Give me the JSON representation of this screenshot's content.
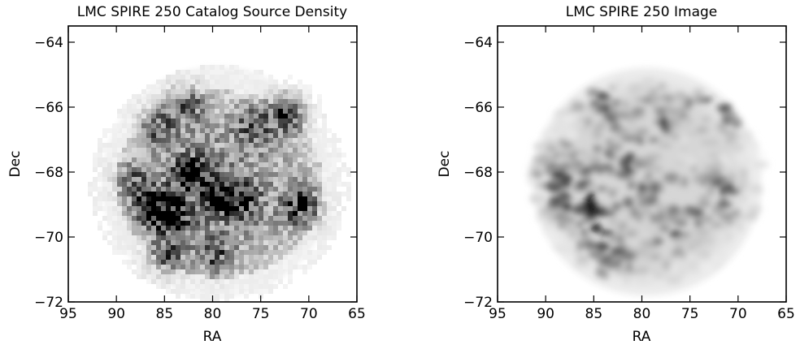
{
  "chart_data": [
    {
      "type": "heatmap",
      "title": "LMC SPIRE 250 Catalog Source Density",
      "xlabel": "RA",
      "ylabel": "Dec",
      "xlim": [
        95,
        65
      ],
      "ylim": [
        -72,
        -63.5
      ],
      "xticks": [
        95,
        90,
        85,
        80,
        75,
        70,
        65
      ],
      "xticklabels": [
        "95",
        "90",
        "85",
        "80",
        "75",
        "70",
        "65"
      ],
      "yticks": [
        -64,
        -66,
        -68,
        -70,
        -72
      ],
      "yticklabels": [
        "−64",
        "−66",
        "−68",
        "−70",
        "−72"
      ],
      "colormap": "gray_r",
      "texture": "binned",
      "features": [
        {
          "ra": 72.5,
          "dec": -66.1,
          "level": 0.85
        },
        {
          "ra": 82.5,
          "dec": -68.0,
          "level": 0.95
        },
        {
          "ra": 86.5,
          "dec": -69.0,
          "level": 0.9
        },
        {
          "ra": 84.5,
          "dec": -69.3,
          "level": 0.85
        },
        {
          "ra": 80.0,
          "dec": -68.7,
          "level": 0.75
        },
        {
          "ra": 77.5,
          "dec": -68.8,
          "level": 0.75
        },
        {
          "ra": 71.0,
          "dec": -69.0,
          "level": 0.85
        },
        {
          "ra": 83.0,
          "dec": -65.8,
          "level": 0.6
        },
        {
          "ra": 86.0,
          "dec": -66.5,
          "level": 0.6
        },
        {
          "ra": 76.0,
          "dec": -66.5,
          "level": 0.55
        },
        {
          "ra": 85.0,
          "dec": -70.5,
          "level": 0.6
        },
        {
          "ra": 80.0,
          "dec": -70.5,
          "level": 0.55
        },
        {
          "ra": 88.5,
          "dec": -68.2,
          "level": 0.5
        }
      ]
    },
    {
      "type": "heatmap",
      "title": "LMC SPIRE 250 Image",
      "xlabel": "RA",
      "ylabel": "Dec",
      "xlim": [
        95,
        65
      ],
      "ylim": [
        -72,
        -63.5
      ],
      "xticks": [
        95,
        90,
        85,
        80,
        75,
        70,
        65
      ],
      "xticklabels": [
        "95",
        "90",
        "85",
        "80",
        "75",
        "70",
        "65"
      ],
      "yticks": [
        -64,
        -66,
        -68,
        -70,
        -72
      ],
      "yticklabels": [
        "−64",
        "−66",
        "−68",
        "−70",
        "−72"
      ],
      "colormap": "gray_r",
      "texture": "smooth",
      "features": [
        {
          "ra": 86.5,
          "dec": -68.8,
          "level": 1.0
        },
        {
          "ra": 85.0,
          "dec": -69.6,
          "level": 0.85
        },
        {
          "ra": 72.3,
          "dec": -66.1,
          "level": 0.85
        },
        {
          "ra": 82.0,
          "dec": -67.5,
          "level": 0.7
        },
        {
          "ra": 84.0,
          "dec": -65.9,
          "level": 0.65
        },
        {
          "ra": 78.0,
          "dec": -66.3,
          "level": 0.6
        },
        {
          "ra": 80.0,
          "dec": -68.5,
          "level": 0.6
        },
        {
          "ra": 75.0,
          "dec": -68.8,
          "level": 0.6
        },
        {
          "ra": 72.0,
          "dec": -68.8,
          "level": 0.65
        },
        {
          "ra": 88.5,
          "dec": -67.9,
          "level": 0.55
        },
        {
          "ra": 83.0,
          "dec": -70.8,
          "level": 0.55
        },
        {
          "ra": 77.0,
          "dec": -70.0,
          "level": 0.45
        }
      ]
    }
  ]
}
